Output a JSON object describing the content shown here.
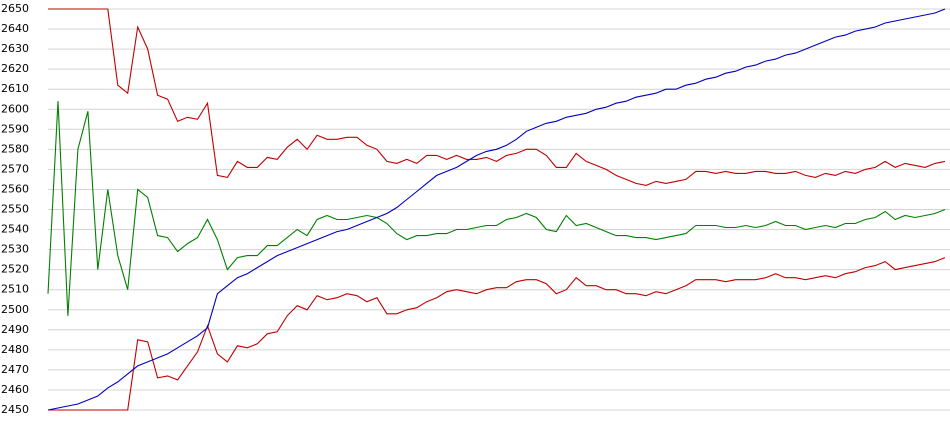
{
  "chart_data": {
    "type": "line",
    "categories": [
      null,
      null,
      null,
      null,
      null,
      null,
      null,
      null,
      null,
      null,
      null,
      null,
      null,
      null,
      null,
      null,
      null,
      null,
      null,
      null,
      null,
      null,
      null,
      null,
      null,
      null,
      null,
      null,
      null,
      null,
      null,
      null,
      null,
      null,
      null,
      null,
      null,
      null,
      null,
      null,
      null,
      null,
      null,
      null,
      null,
      null,
      null,
      null,
      null,
      null,
      null,
      null,
      null,
      null,
      null,
      null,
      null,
      null,
      null,
      null,
      null,
      null,
      null,
      null,
      null,
      null,
      null,
      null,
      null,
      null,
      null,
      null,
      null,
      null,
      null,
      null,
      null,
      null,
      null,
      null,
      null,
      null,
      null,
      null,
      null,
      null,
      null,
      null,
      null,
      null,
      null
    ],
    "ylim": [
      2450,
      2650
    ],
    "yticks": [
      2450,
      2460,
      2470,
      2480,
      2490,
      2500,
      2510,
      2520,
      2530,
      2540,
      2550,
      2560,
      2570,
      2580,
      2590,
      2600,
      2610,
      2620,
      2630,
      2640,
      2650
    ],
    "grid": true,
    "series": [
      {
        "color": "#c00000",
        "values": [
          2650,
          2650,
          2650,
          2650,
          2650,
          2650,
          2650,
          2612,
          2608,
          2641,
          2630,
          2607,
          2605,
          2594,
          2596,
          2595,
          2603,
          2567,
          2566,
          2574,
          2571,
          2571,
          2576,
          2575,
          2581,
          2585,
          2580,
          2587,
          2585,
          2585,
          2586,
          2586,
          2582,
          2580,
          2574,
          2573,
          2575,
          2573,
          2577,
          2577,
          2575,
          2577,
          2575,
          2575,
          2576,
          2574,
          2577,
          2578,
          2580,
          2580,
          2577,
          2571,
          2571,
          2578,
          2574,
          2572,
          2570,
          2567,
          2565,
          2563,
          2562,
          2564,
          2563,
          2564,
          2565,
          2569,
          2569,
          2568,
          2569,
          2568,
          2568,
          2569,
          2569,
          2568,
          2568,
          2569,
          2567,
          2566,
          2568,
          2567,
          2569,
          2568,
          2570,
          2571,
          2574,
          2571,
          2573,
          2572,
          2571,
          2573,
          2574
        ]
      },
      {
        "color": "#c00000",
        "values": [
          2450,
          2450,
          2450,
          2450,
          2450,
          2450,
          2450,
          2450,
          2450,
          2485,
          2484,
          2466,
          2467,
          2465,
          2472,
          2479,
          2492,
          2478,
          2474,
          2482,
          2481,
          2483,
          2488,
          2489,
          2497,
          2502,
          2500,
          2507,
          2505,
          2506,
          2508,
          2507,
          2504,
          2506,
          2498,
          2498,
          2500,
          2501,
          2504,
          2506,
          2509,
          2510,
          2509,
          2508,
          2510,
          2511,
          2511,
          2514,
          2515,
          2515,
          2513,
          2508,
          2510,
          2516,
          2512,
          2512,
          2510,
          2510,
          2508,
          2508,
          2507,
          2509,
          2508,
          2510,
          2512,
          2515,
          2515,
          2515,
          2514,
          2515,
          2515,
          2515,
          2516,
          2518,
          2516,
          2516,
          2515,
          2516,
          2517,
          2516,
          2518,
          2519,
          2521,
          2522,
          2524,
          2520,
          2521,
          2522,
          2523,
          2524,
          2526
        ]
      },
      {
        "color": "#008000",
        "values": [
          2508,
          2604,
          2497,
          2580,
          2599,
          2520,
          2560,
          2527,
          2510,
          2560,
          2556,
          2537,
          2536,
          2529,
          2533,
          2536,
          2545,
          2535,
          2520,
          2526,
          2527,
          2527,
          2532,
          2532,
          2536,
          2540,
          2537,
          2545,
          2547,
          2545,
          2545,
          2546,
          2547,
          2546,
          2543,
          2538,
          2535,
          2537,
          2537,
          2538,
          2538,
          2540,
          2540,
          2541,
          2542,
          2542,
          2545,
          2546,
          2548,
          2546,
          2540,
          2539,
          2547,
          2542,
          2543,
          2541,
          2539,
          2537,
          2537,
          2536,
          2536,
          2535,
          2536,
          2537,
          2538,
          2542,
          2542,
          2542,
          2541,
          2541,
          2542,
          2541,
          2542,
          2544,
          2542,
          2542,
          2540,
          2541,
          2542,
          2541,
          2543,
          2543,
          2545,
          2546,
          2549,
          2545,
          2547,
          2546,
          2547,
          2548,
          2550
        ]
      },
      {
        "color": "#0000c0",
        "values": [
          2450,
          2451,
          2452,
          2453,
          2455,
          2457,
          2461,
          2464,
          2468,
          2472,
          2474,
          2476,
          2478,
          2481,
          2484,
          2487,
          2491,
          2508,
          2512,
          2516,
          2518,
          2521,
          2524,
          2527,
          2529,
          2531,
          2533,
          2535,
          2537,
          2539,
          2540,
          2542,
          2544,
          2546,
          2548,
          2551,
          2555,
          2559,
          2563,
          2567,
          2569,
          2571,
          2574,
          2577,
          2579,
          2580,
          2582,
          2585,
          2589,
          2591,
          2593,
          2594,
          2596,
          2597,
          2598,
          2600,
          2601,
          2603,
          2604,
          2606,
          2607,
          2608,
          2610,
          2610,
          2612,
          2613,
          2615,
          2616,
          2618,
          2619,
          2621,
          2622,
          2624,
          2625,
          2627,
          2628,
          2630,
          2632,
          2634,
          2636,
          2637,
          2639,
          2640,
          2641,
          2643,
          2644,
          2645,
          2646,
          2647,
          2648,
          2650
        ]
      }
    ]
  }
}
